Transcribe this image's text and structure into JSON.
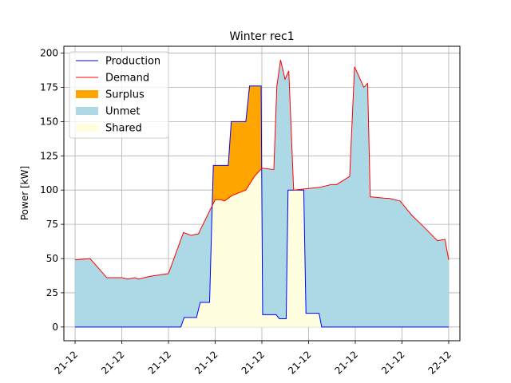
{
  "chart_data": {
    "type": "area",
    "title": "Winter rec1",
    "xlabel": "",
    "ylabel": "Power [kW]",
    "ylim": [
      -10,
      205
    ],
    "xlim": [
      -0.03,
      1.03
    ],
    "yticks": [
      0,
      25,
      50,
      75,
      100,
      125,
      150,
      175,
      200
    ],
    "xticks": [
      {
        "pos": 0.0,
        "label": "21-12"
      },
      {
        "pos": 0.125,
        "label": "21-12"
      },
      {
        "pos": 0.25,
        "label": "21-12"
      },
      {
        "pos": 0.375,
        "label": "21-12"
      },
      {
        "pos": 0.5,
        "label": "21-12"
      },
      {
        "pos": 0.625,
        "label": "21-12"
      },
      {
        "pos": 0.75,
        "label": "21-12"
      },
      {
        "pos": 0.875,
        "label": "21-12"
      },
      {
        "pos": 1.0,
        "label": "22-12"
      }
    ],
    "grid": true,
    "legend_position": "top-left",
    "legend": [
      {
        "label": "Production",
        "kind": "line",
        "color": "#0000ff"
      },
      {
        "label": "Demand",
        "kind": "line",
        "color": "#ff0000"
      },
      {
        "label": "Surplus",
        "kind": "patch",
        "color": "#ffa500"
      },
      {
        "label": "Unmet",
        "kind": "patch",
        "color": "#add8e6"
      },
      {
        "label": "Shared",
        "kind": "patch",
        "color": "#ffffe0"
      }
    ],
    "series": [
      {
        "name": "Production",
        "color": "#0000ff",
        "x": [
          0.0,
          0.283,
          0.292,
          0.325,
          0.335,
          0.36,
          0.37,
          0.41,
          0.418,
          0.457,
          0.467,
          0.498,
          0.502,
          0.538,
          0.547,
          0.565,
          0.57,
          0.612,
          0.618,
          0.653,
          0.66,
          1.0
        ],
        "y": [
          0,
          0,
          7,
          7,
          18,
          18,
          118,
          118,
          150,
          150,
          176,
          176,
          9,
          9,
          6,
          6,
          100,
          100,
          10,
          10,
          0,
          0
        ]
      },
      {
        "name": "Demand",
        "color": "#ff0000",
        "x": [
          0.0,
          0.04,
          0.085,
          0.125,
          0.14,
          0.16,
          0.17,
          0.2,
          0.25,
          0.29,
          0.31,
          0.33,
          0.375,
          0.39,
          0.4,
          0.42,
          0.457,
          0.48,
          0.5,
          0.532,
          0.54,
          0.55,
          0.562,
          0.572,
          0.585,
          0.62,
          0.655,
          0.67,
          0.685,
          0.7,
          0.735,
          0.748,
          0.773,
          0.783,
          0.79,
          0.795,
          0.83,
          0.84,
          0.87,
          0.9,
          0.93,
          0.97,
          0.99,
          1.0
        ],
        "y": [
          49,
          50,
          36,
          36,
          35,
          36,
          35,
          37,
          39,
          69,
          67,
          68,
          93,
          93,
          92,
          96,
          100,
          110,
          116,
          115,
          176,
          195,
          181,
          187,
          100,
          101,
          102,
          103,
          104,
          104,
          110,
          190,
          175,
          178,
          95,
          95,
          94,
          94,
          92,
          82,
          74,
          63,
          64,
          49
        ]
      }
    ]
  }
}
